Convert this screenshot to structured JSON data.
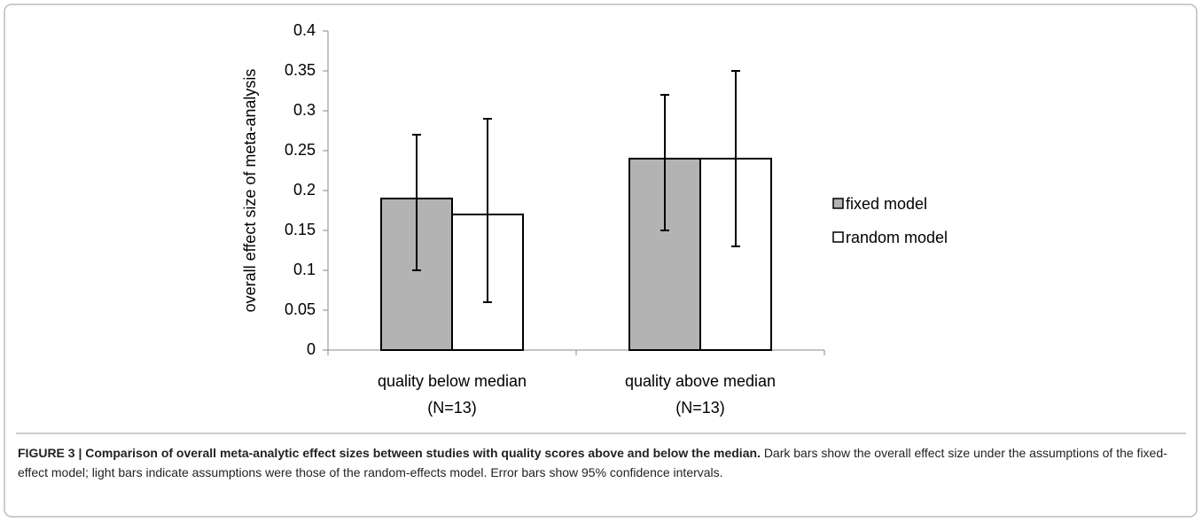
{
  "chart_data": {
    "type": "bar",
    "y_label": "overall effect size of meta-analysis",
    "categories": [
      "quality below median",
      "quality above median"
    ],
    "category_notes": [
      "(N=13)",
      "(N=13)"
    ],
    "series": [
      {
        "name": "fixed model",
        "color": "#b3b3b3",
        "values": [
          0.19,
          0.24
        ],
        "ci_lower": [
          0.1,
          0.15
        ],
        "ci_upper": [
          0.27,
          0.32
        ]
      },
      {
        "name": "random model",
        "color": "#ffffff",
        "values": [
          0.17,
          0.24
        ],
        "ci_lower": [
          0.06,
          0.13
        ],
        "ci_upper": [
          0.29,
          0.35
        ]
      }
    ],
    "ylim": [
      0,
      0.4
    ],
    "yticks": [
      0,
      0.05,
      0.1,
      0.15,
      0.2,
      0.25,
      0.3,
      0.35,
      0.4
    ],
    "grid": false,
    "legend": "right"
  },
  "caption": {
    "label": "FIGURE 3 | Comparison of overall meta-analytic effect sizes between studies with quality scores above and below the median.",
    "text": "Dark bars show the overall effect size under the assumptions of the fixed-effect model; light bars indicate assumptions were those of the random-effects model. Error bars show 95% confidence intervals."
  }
}
